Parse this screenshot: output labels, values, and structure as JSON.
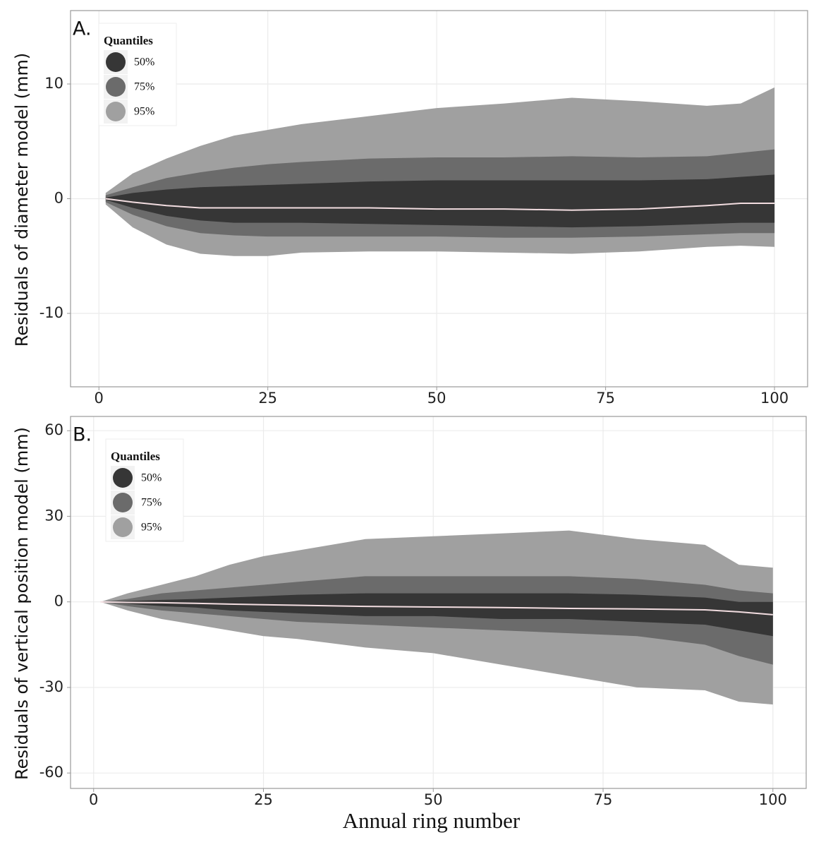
{
  "chart_data": [
    {
      "type": "band",
      "panel_label": "A.",
      "ylabel": "Residuals of diameter model (mm)",
      "legend_title": "Quantiles",
      "x": [
        1,
        5,
        10,
        15,
        20,
        25,
        30,
        40,
        50,
        60,
        70,
        80,
        90,
        95,
        100
      ],
      "series": [
        {
          "name": "50%",
          "color": "#363636",
          "upper": [
            0.1,
            0.5,
            0.8,
            1.0,
            1.1,
            1.2,
            1.3,
            1.5,
            1.6,
            1.6,
            1.6,
            1.6,
            1.7,
            1.9,
            2.1
          ],
          "lower": [
            -0.1,
            -0.8,
            -1.5,
            -1.9,
            -2.1,
            -2.1,
            -2.1,
            -2.2,
            -2.3,
            -2.4,
            -2.5,
            -2.4,
            -2.2,
            -2.1,
            -2.1
          ]
        },
        {
          "name": "75%",
          "color": "#6b6b6b",
          "upper": [
            0.3,
            1.0,
            1.8,
            2.3,
            2.7,
            3.0,
            3.2,
            3.5,
            3.6,
            3.6,
            3.7,
            3.6,
            3.7,
            4.0,
            4.3
          ],
          "lower": [
            -0.3,
            -1.4,
            -2.4,
            -3.0,
            -3.2,
            -3.3,
            -3.3,
            -3.3,
            -3.3,
            -3.4,
            -3.4,
            -3.3,
            -3.1,
            -3.0,
            -3.0
          ]
        },
        {
          "name": "95%",
          "color": "#a0a0a0",
          "upper": [
            0.5,
            2.2,
            3.5,
            4.6,
            5.5,
            6.0,
            6.5,
            7.2,
            7.9,
            8.3,
            8.8,
            8.5,
            8.1,
            8.3,
            9.7
          ],
          "lower": [
            -0.5,
            -2.5,
            -4.0,
            -4.8,
            -5.0,
            -5.0,
            -4.7,
            -4.6,
            -4.6,
            -4.7,
            -4.8,
            -4.6,
            -4.2,
            -4.1,
            -4.2
          ]
        }
      ],
      "median": {
        "color": "#f2dde0",
        "values": [
          0,
          -0.3,
          -0.6,
          -0.8,
          -0.8,
          -0.8,
          -0.8,
          -0.8,
          -0.9,
          -0.9,
          -1.0,
          -0.9,
          -0.6,
          -0.4,
          -0.4
        ]
      },
      "xlim": [
        -4.2,
        104.9
      ],
      "xticks": [
        0,
        25,
        50,
        75,
        100
      ],
      "ylim": [
        -16.4,
        16.4
      ],
      "yticks": [
        -10,
        0,
        10
      ],
      "grid": true
    },
    {
      "type": "band",
      "panel_label": "B.",
      "ylabel": "Residuals of vertical position model (mm)",
      "xlabel": "Annual ring number",
      "legend_title": "Quantiles",
      "x": [
        1,
        5,
        10,
        15,
        20,
        25,
        30,
        40,
        50,
        60,
        70,
        80,
        90,
        95,
        100
      ],
      "series": [
        {
          "name": "50%",
          "color": "#363636",
          "upper": [
            0,
            0.3,
            0.7,
            1,
            1.5,
            2,
            2.5,
            3,
            3,
            3,
            3,
            2.5,
            1.5,
            0,
            0
          ],
          "lower": [
            0,
            -0.7,
            -1.5,
            -2,
            -3,
            -3.5,
            -4,
            -5,
            -5,
            -6,
            -6,
            -7,
            -8,
            -10,
            -12
          ]
        },
        {
          "name": "75%",
          "color": "#6b6b6b",
          "upper": [
            0,
            1,
            3,
            4,
            5,
            6,
            7,
            9,
            9,
            9,
            9,
            8,
            6,
            4,
            3
          ],
          "lower": [
            0,
            -1.5,
            -3,
            -4,
            -5,
            -6,
            -7,
            -8,
            -9,
            -10,
            -11,
            -12,
            -15,
            -19,
            -22
          ]
        },
        {
          "name": "95%",
          "color": "#a0a0a0",
          "upper": [
            0,
            3,
            6,
            9,
            13,
            16,
            18,
            22,
            23,
            24,
            25,
            22,
            20,
            13,
            12
          ],
          "lower": [
            0,
            -3,
            -6,
            -8,
            -10,
            -12,
            -13,
            -16,
            -18,
            -22,
            -26,
            -30,
            -31,
            -35,
            -36
          ]
        }
      ],
      "median": {
        "color": "#f2dde0",
        "values": [
          0,
          -0.2,
          -0.3,
          -0.5,
          -0.8,
          -1,
          -1.2,
          -1.6,
          -1.8,
          -2,
          -2.3,
          -2.5,
          -2.8,
          -3.5,
          -4.5
        ]
      },
      "xlim": [
        -3.4,
        104.9
      ],
      "xticks": [
        0,
        25,
        50,
        75,
        100
      ],
      "ylim": [
        -65.4,
        65
      ],
      "yticks": [
        -60,
        -30,
        0,
        30,
        60
      ],
      "grid": true
    }
  ]
}
